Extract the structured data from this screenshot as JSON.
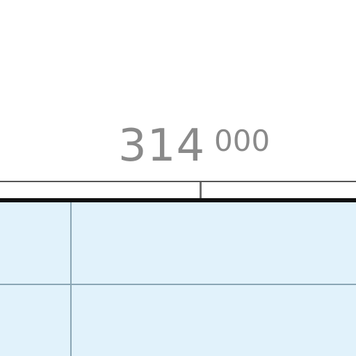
{
  "map": {
    "grid_label": {
      "major": "314",
      "minor": "000"
    },
    "colors": {
      "water": "#e1f2fb",
      "grid_line": "#8aa6b4",
      "frame": "#111111",
      "label": "#8a8a8a"
    }
  }
}
